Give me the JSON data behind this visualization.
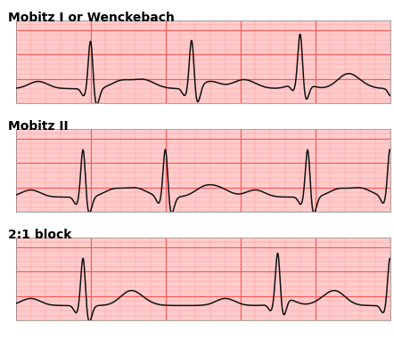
{
  "title1": "Mobitz I or Wenckebach",
  "title2": "Mobitz II",
  "title3": "2:1 block",
  "bg_color": "#FFCCCC",
  "grid_minor_color": "#FF9999",
  "grid_major_color": "#FF5555",
  "ecg_color": "#111111",
  "white_bg": "#FFFFFF",
  "title_fontsize": 10,
  "title_fontweight": "bold",
  "panel_bg": "#FFDDDD"
}
